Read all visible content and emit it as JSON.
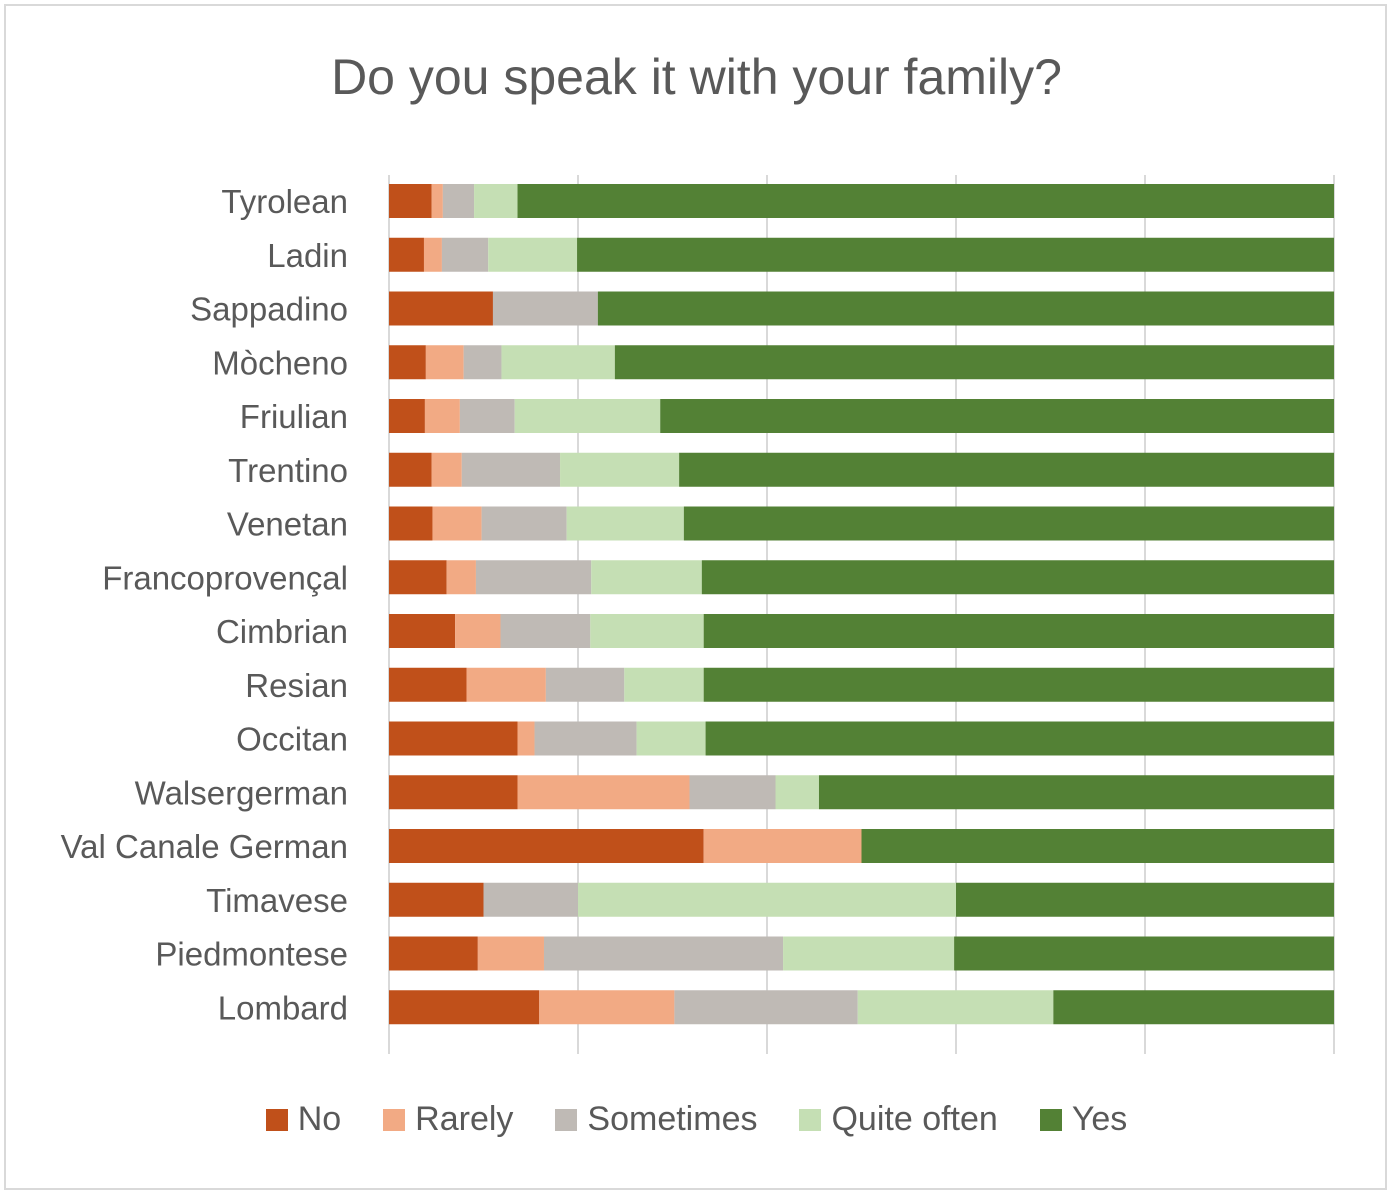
{
  "chart_data": {
    "type": "bar",
    "orientation": "horizontal",
    "stacked": "percent",
    "title": "Do you speak it with your family?",
    "xlabel": "",
    "ylabel": "",
    "xlim": [
      0,
      100
    ],
    "grid": true,
    "legend_position": "bottom",
    "categories": [
      "Tyrolean",
      "Ladin",
      "Sappadino",
      "Mòcheno",
      "Friulian",
      "Trentino",
      "Venetan",
      "Francoprovençal",
      "Cimbrian",
      "Resian",
      "Occitan",
      "Walsergerman",
      "Val Canale German",
      "Timavese",
      "Piedmontese",
      "Lombard"
    ],
    "series": [
      {
        "name": "No",
        "color": "#c0501a",
        "values": [
          4.5,
          3.7,
          11.0,
          3.9,
          3.8,
          4.5,
          4.6,
          6.1,
          7.0,
          8.2,
          13.6,
          13.6,
          33.3,
          10.0,
          9.4,
          15.9
        ]
      },
      {
        "name": "Rarely",
        "color": "#f2aa84",
        "values": [
          1.2,
          1.9,
          0.0,
          4.0,
          3.7,
          3.2,
          5.2,
          3.1,
          4.8,
          8.4,
          1.8,
          18.2,
          16.7,
          0.0,
          7.0,
          14.3
        ]
      },
      {
        "name": "Sometimes",
        "color": "#bfbab5",
        "values": [
          3.3,
          4.9,
          11.1,
          4.0,
          5.8,
          10.4,
          9.0,
          12.2,
          9.5,
          8.3,
          10.8,
          9.1,
          0.0,
          10.0,
          25.3,
          19.4
        ]
      },
      {
        "name": "Quite often",
        "color": "#c5dfb4",
        "values": [
          4.6,
          9.4,
          0.0,
          12.0,
          15.4,
          12.6,
          12.4,
          11.7,
          12.0,
          8.4,
          7.3,
          4.6,
          0.0,
          40.0,
          18.1,
          20.7
        ]
      },
      {
        "name": "Yes",
        "color": "#538135",
        "values": [
          86.4,
          80.1,
          77.9,
          76.1,
          71.3,
          69.3,
          68.8,
          66.9,
          66.7,
          66.7,
          66.5,
          54.5,
          50.0,
          40.0,
          40.2,
          29.7
        ]
      }
    ]
  }
}
